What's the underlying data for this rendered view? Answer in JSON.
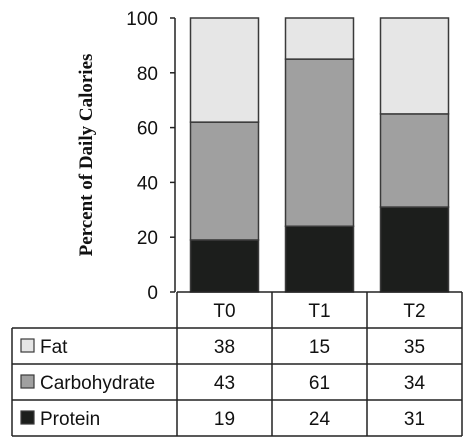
{
  "chart_data": {
    "type": "bar",
    "stacked": true,
    "ylabel": "Percent of Daily Calories",
    "xlabel": "",
    "ylim": [
      0,
      100
    ],
    "yticks": [
      0,
      20,
      40,
      60,
      80,
      100
    ],
    "categories": [
      "T0",
      "T1",
      "T2"
    ],
    "series": [
      {
        "name": "Protein",
        "values": [
          19,
          24,
          31
        ],
        "color": "#1c1e1c"
      },
      {
        "name": "Carbohydrate",
        "values": [
          43,
          61,
          34
        ],
        "color": "#a0a0a0"
      },
      {
        "name": "Fat",
        "values": [
          38,
          15,
          35
        ],
        "color": "#e6e6e6"
      }
    ],
    "table_rows": [
      "Fat",
      "Carbohydrate",
      "Protein"
    ],
    "legend_placement": "data table",
    "grid": false
  }
}
